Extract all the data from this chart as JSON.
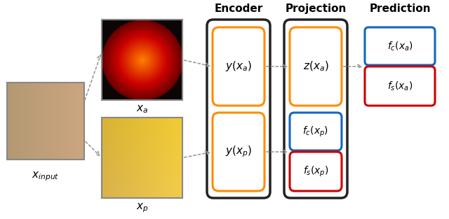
{
  "title": "",
  "bg_color": "#ffffff",
  "encoder_label": "Encoder",
  "projection_label": "Projection",
  "prediction_label": "Prediction",
  "x_input_label": "$\\mathbf{x}_{input}$",
  "x_a_label": "$x_a$",
  "x_p_label": "$x_p$",
  "encoder_box_color": "#FF8C00",
  "projection_top_color": "#FF8C00",
  "projection_bottom_fc_color": "#1565C0",
  "projection_bottom_fs_color": "#CC0000",
  "prediction_top_fc_color": "#1565C0",
  "prediction_top_fs_color": "#CC0000",
  "outer_box_color": "#222222",
  "arrow_color": "#999999",
  "text_color": "#000000",
  "ya_text": "$y(x_a)$",
  "yp_text": "$y(x_p)$",
  "za_text": "$z(x_a)$",
  "fca_text": "$f_c(x_a)$",
  "fsa_text": "$f_s(x_a)$",
  "fcp_text": "$f_c(x_p)$",
  "fsp_text": "$f_s(x_p)$"
}
